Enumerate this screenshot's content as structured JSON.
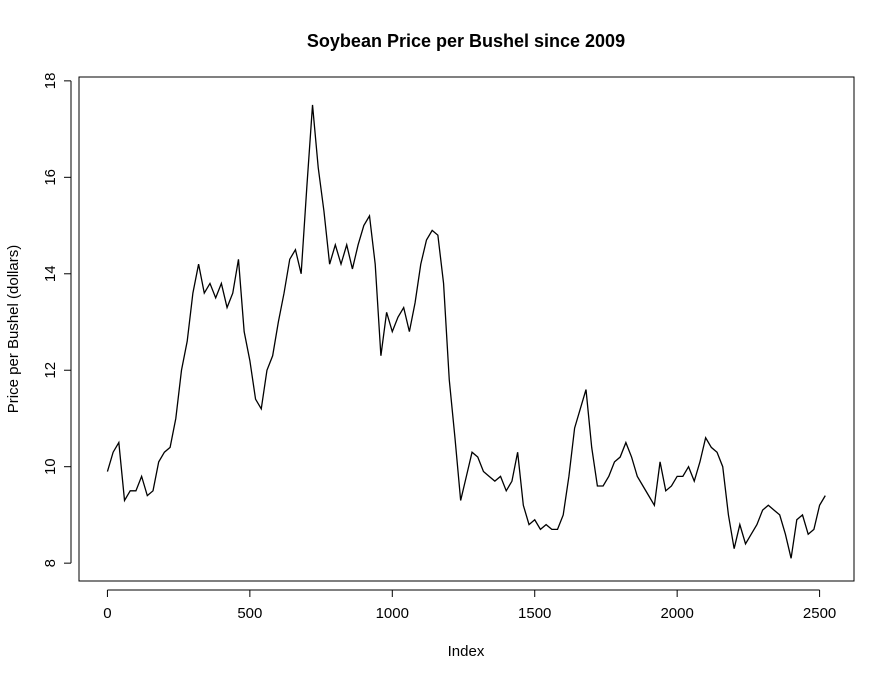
{
  "chart_data": {
    "type": "line",
    "title": "Soybean Price per Bushel since 2009",
    "x_label": "Index",
    "y_label": "Price per Bushel (dollars)",
    "x": [
      0,
      20,
      40,
      60,
      80,
      100,
      120,
      140,
      160,
      180,
      200,
      220,
      240,
      260,
      280,
      300,
      320,
      340,
      360,
      380,
      400,
      420,
      440,
      460,
      480,
      500,
      520,
      540,
      560,
      580,
      600,
      620,
      640,
      660,
      680,
      700,
      720,
      740,
      760,
      780,
      800,
      820,
      840,
      860,
      880,
      900,
      920,
      940,
      960,
      980,
      1000,
      1020,
      1040,
      1060,
      1080,
      1100,
      1120,
      1140,
      1160,
      1180,
      1200,
      1220,
      1240,
      1260,
      1280,
      1300,
      1320,
      1340,
      1360,
      1380,
      1400,
      1420,
      1440,
      1460,
      1480,
      1500,
      1520,
      1540,
      1560,
      1580,
      1600,
      1620,
      1640,
      1660,
      1680,
      1700,
      1720,
      1740,
      1760,
      1780,
      1800,
      1820,
      1840,
      1860,
      1880,
      1900,
      1920,
      1940,
      1960,
      1980,
      2000,
      2020,
      2040,
      2060,
      2080,
      2100,
      2120,
      2140,
      2160,
      2180,
      2200,
      2220,
      2240,
      2260,
      2280,
      2300,
      2320,
      2340,
      2360,
      2380,
      2400,
      2420,
      2440,
      2460,
      2480,
      2500,
      2520
    ],
    "series": [
      {
        "color": "#000000",
        "values": [
          9.9,
          10.3,
          10.5,
          9.3,
          9.5,
          9.5,
          9.8,
          9.4,
          9.5,
          10.1,
          10.3,
          10.4,
          11.0,
          12.0,
          12.6,
          13.6,
          14.2,
          13.6,
          13.8,
          13.5,
          13.8,
          13.3,
          13.6,
          14.3,
          12.8,
          12.2,
          11.4,
          11.2,
          12.0,
          12.3,
          13.0,
          13.6,
          14.3,
          14.5,
          14.0,
          15.8,
          17.5,
          16.2,
          15.3,
          14.2,
          14.6,
          14.2,
          14.6,
          14.1,
          14.6,
          15.0,
          15.2,
          14.2,
          12.3,
          13.2,
          12.8,
          13.1,
          13.3,
          12.8,
          13.4,
          14.2,
          14.7,
          14.9,
          14.8,
          13.8,
          11.8,
          10.6,
          9.3,
          9.8,
          10.3,
          10.2,
          9.9,
          9.8,
          9.7,
          9.8,
          9.5,
          9.7,
          10.3,
          9.2,
          8.8,
          8.9,
          8.7,
          8.8,
          8.7,
          8.7,
          9.0,
          9.8,
          10.8,
          11.2,
          11.6,
          10.4,
          9.6,
          9.6,
          9.8,
          10.1,
          10.2,
          10.5,
          10.2,
          9.8,
          9.6,
          9.4,
          9.2,
          10.1,
          9.5,
          9.6,
          9.8,
          9.8,
          10.0,
          9.7,
          10.1,
          10.6,
          10.4,
          10.3,
          10.0,
          9.0,
          8.3,
          8.8,
          8.4,
          8.6,
          8.8,
          9.1,
          9.2,
          9.1,
          9.0,
          8.6,
          8.1,
          8.9,
          9.0,
          8.6,
          8.7,
          9.2,
          9.4
        ]
      }
    ],
    "xlim": [
      -99.8,
      2620.8
    ],
    "ylim": [
      7.63,
      18.08
    ],
    "xticks": [
      0,
      500,
      1000,
      1500,
      2000,
      2500
    ],
    "yticks": [
      8,
      10,
      12,
      14,
      16,
      18
    ]
  }
}
